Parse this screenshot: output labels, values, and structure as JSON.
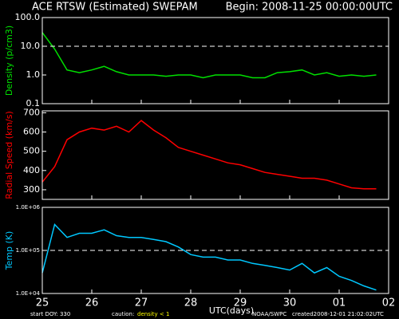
{
  "header": {
    "title": "ACE RTSW (Estimated) SWEPAM",
    "begin": "Begin: 2008-11-25 00:00:00UTC"
  },
  "footer": {
    "start": "start DOY: 330",
    "caution": "caution:",
    "caution_text": "density < 1",
    "source": "NOAA/SWPC",
    "created": "created2008-12-01 21:02:02UTC"
  },
  "chart_data": [
    {
      "type": "line",
      "ylabel": "Density (p/cm3)",
      "log": true,
      "color": "#00e000",
      "reference_line": 10,
      "xlim": [
        0,
        7
      ],
      "xticks": [
        {
          "value": 0,
          "label": "25"
        },
        {
          "value": 1,
          "label": "26"
        },
        {
          "value": 2,
          "label": "27"
        },
        {
          "value": 3,
          "label": "28"
        },
        {
          "value": 4,
          "label": "29"
        },
        {
          "value": 5,
          "label": "30"
        },
        {
          "value": 6,
          "label": "01"
        },
        {
          "value": 7,
          "label": "02"
        }
      ],
      "ylim": [
        0.1,
        100
      ],
      "yticks": [
        0.1,
        {
          "value": 1,
          "label": "1.0"
        },
        {
          "value": 10,
          "label": "10.0"
        },
        {
          "value": 100,
          "label": "100.0"
        }
      ],
      "x": [
        0,
        0.25,
        0.5,
        0.75,
        1,
        1.25,
        1.5,
        1.75,
        2,
        2.25,
        2.5,
        2.75,
        3,
        3.25,
        3.5,
        3.75,
        4,
        4.25,
        4.5,
        4.75,
        5,
        5.25,
        5.5,
        5.75,
        6,
        6.25,
        6.5,
        6.75
      ],
      "values": [
        30,
        8,
        1.5,
        1.2,
        1.5,
        2,
        1.3,
        1.0,
        1.0,
        1.0,
        0.9,
        1.0,
        1.0,
        0.8,
        1.0,
        1.0,
        1.0,
        0.8,
        0.8,
        1.2,
        1.3,
        1.5,
        1.0,
        1.2,
        0.9,
        1.0,
        0.9,
        1.0
      ]
    },
    {
      "type": "line",
      "ylabel": "Radial Speed (km/s)",
      "log": false,
      "color": "#ff0000",
      "xlim": [
        0,
        7
      ],
      "xticks": [
        {
          "value": 0,
          "label": "25"
        },
        {
          "value": 1,
          "label": "26"
        },
        {
          "value": 2,
          "label": "27"
        },
        {
          "value": 3,
          "label": "28"
        },
        {
          "value": 4,
          "label": "29"
        },
        {
          "value": 5,
          "label": "30"
        },
        {
          "value": 6,
          "label": "01"
        },
        {
          "value": 7,
          "label": "02"
        }
      ],
      "ylim": [
        250,
        710
      ],
      "yticks": [
        300,
        400,
        500,
        600,
        700
      ],
      "x": [
        0,
        0.25,
        0.5,
        0.75,
        1,
        1.25,
        1.5,
        1.75,
        2,
        2.25,
        2.5,
        2.75,
        3,
        3.25,
        3.5,
        3.75,
        4,
        4.25,
        4.5,
        4.75,
        5,
        5.25,
        5.5,
        5.75,
        6,
        6.25,
        6.5,
        6.75
      ],
      "values": [
        340,
        420,
        560,
        600,
        620,
        610,
        630,
        600,
        660,
        610,
        570,
        520,
        500,
        480,
        460,
        440,
        430,
        410,
        390,
        380,
        370,
        360,
        360,
        350,
        330,
        310,
        305,
        305
      ]
    },
    {
      "type": "line",
      "ylabel": "Temp (K)",
      "log": true,
      "color": "#00c8ff",
      "reference_line": 100000,
      "xlim": [
        0,
        7
      ],
      "xticks": [
        {
          "value": 0,
          "label": "25"
        },
        {
          "value": 1,
          "label": "26"
        },
        {
          "value": 2,
          "label": "27"
        },
        {
          "value": 3,
          "label": "28"
        },
        {
          "value": 4,
          "label": "29"
        },
        {
          "value": 5,
          "label": "30"
        },
        {
          "value": 6,
          "label": "01"
        },
        {
          "value": 7,
          "label": "02"
        }
      ],
      "xlabel": "UTC(days)",
      "ylim": [
        10000,
        1000000
      ],
      "yticks": [
        {
          "value": 10000,
          "label": "1.0E+04"
        },
        {
          "value": 100000,
          "label": "1.0E+05"
        },
        {
          "value": 1000000,
          "label": "1.0E+06"
        }
      ],
      "x": [
        0,
        0.25,
        0.5,
        0.75,
        1,
        1.25,
        1.5,
        1.75,
        2,
        2.25,
        2.5,
        2.75,
        3,
        3.25,
        3.5,
        3.75,
        4,
        4.25,
        4.5,
        4.75,
        5,
        5.25,
        5.5,
        5.75,
        6,
        6.25,
        6.5,
        6.75
      ],
      "values": [
        30000,
        400000,
        200000,
        250000,
        250000,
        300000,
        220000,
        200000,
        200000,
        180000,
        160000,
        120000,
        80000,
        70000,
        70000,
        60000,
        60000,
        50000,
        45000,
        40000,
        35000,
        50000,
        30000,
        40000,
        25000,
        20000,
        15000,
        12000
      ]
    }
  ]
}
